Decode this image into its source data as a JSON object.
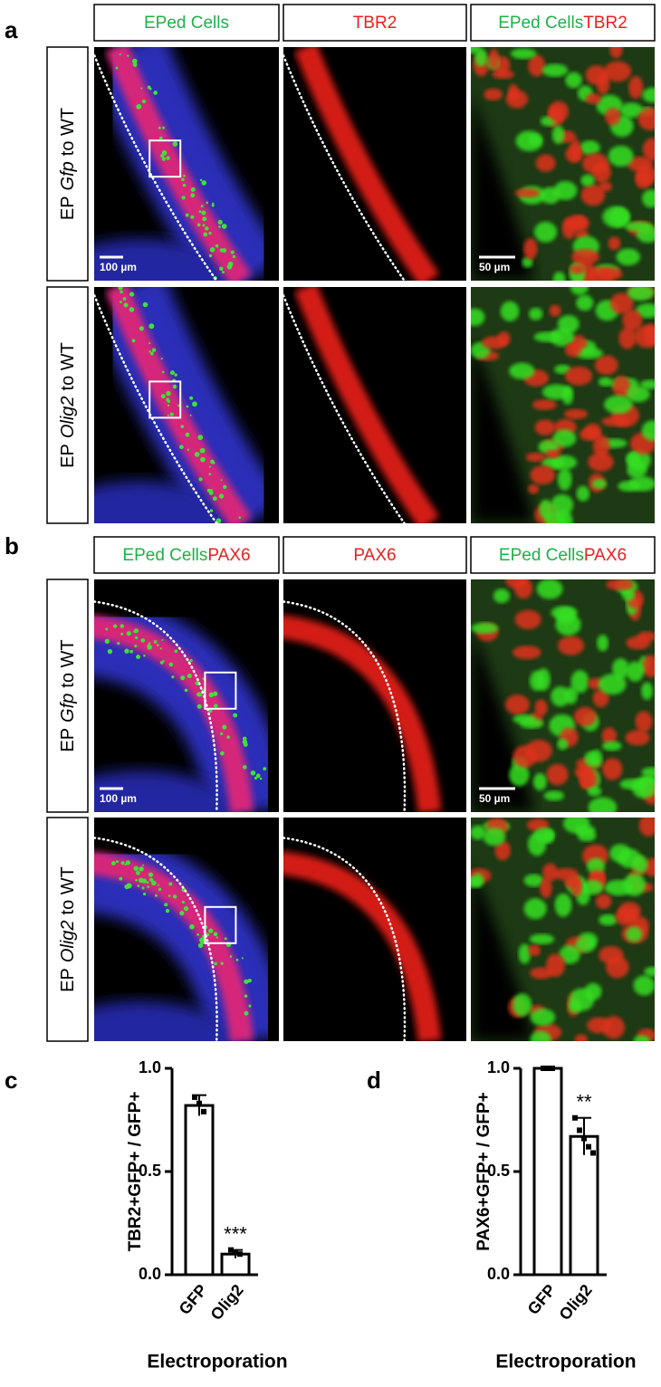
{
  "panels": [
    {
      "label": "a",
      "headers": [
        [
          {
            "text": "EPed Cells",
            "color": "#1fb04a"
          }
        ],
        [
          {
            "text": "TBR2",
            "color": "#e8211e"
          }
        ],
        [
          {
            "text": "EPed Cells",
            "color": "#1fb04a"
          },
          {
            "text": "TBR2",
            "color": "#e8211e"
          }
        ]
      ],
      "rows": [
        {
          "prefix": "EP",
          "gene": "Gfp",
          "suffix": "to WT"
        },
        {
          "prefix": "EP",
          "gene": "Olig2",
          "suffix": "to WT"
        }
      ],
      "scale_bars": [
        "100 µm",
        "50 µm"
      ]
    },
    {
      "label": "b",
      "headers": [
        [
          {
            "text": "EPed Cells",
            "color": "#1fb04a"
          },
          {
            "text": "PAX6",
            "color": "#e8211e"
          }
        ],
        [
          {
            "text": "PAX6",
            "color": "#e8211e"
          }
        ],
        [
          {
            "text": "EPed Cells",
            "color": "#1fb04a"
          },
          {
            "text": "PAX6",
            "color": "#e8211e"
          }
        ]
      ],
      "rows": [
        {
          "prefix": "EP",
          "gene": "Gfp",
          "suffix": "to WT"
        },
        {
          "prefix": "EP",
          "gene": "Olig2",
          "suffix": "to WT"
        }
      ],
      "scale_bars": [
        "100 µm",
        "50 µm"
      ]
    }
  ],
  "chart_data": [
    {
      "type": "bar",
      "label": "c",
      "categories": [
        "GFP",
        "Olig2"
      ],
      "values": [
        0.82,
        0.1
      ],
      "errors": [
        0.05,
        0.02
      ],
      "points": [
        [
          0.86,
          0.83,
          0.79
        ],
        [
          0.12,
          0.11,
          0.1
        ]
      ],
      "ylabel": "TBR2+GFP+ / GFP+",
      "xlabel": "Electroporation",
      "annotation": "***",
      "ylim": [
        0,
        1
      ],
      "yticks": [
        {
          "value": 0,
          "label": "0.0"
        },
        {
          "value": 0.5,
          "label": "0.5"
        },
        {
          "value": 1,
          "label": "1.0"
        }
      ]
    },
    {
      "type": "bar",
      "label": "d",
      "categories": [
        "GFP",
        "Olig2"
      ],
      "values": [
        1,
        0.67
      ],
      "errors": [
        0,
        0.09
      ],
      "points": [
        [
          1,
          1,
          1
        ],
        [
          0.76,
          0.7,
          0.66,
          0.62,
          0.59
        ]
      ],
      "ylabel": "PAX6+GFP+ / GFP+",
      "xlabel": "Electroporation",
      "annotation": "**",
      "ylim": [
        0,
        1
      ],
      "yticks": [
        {
          "value": 0,
          "label": "0.0"
        },
        {
          "value": 0.5,
          "label": "0.5"
        },
        {
          "value": 1,
          "label": "1.0"
        }
      ]
    }
  ]
}
